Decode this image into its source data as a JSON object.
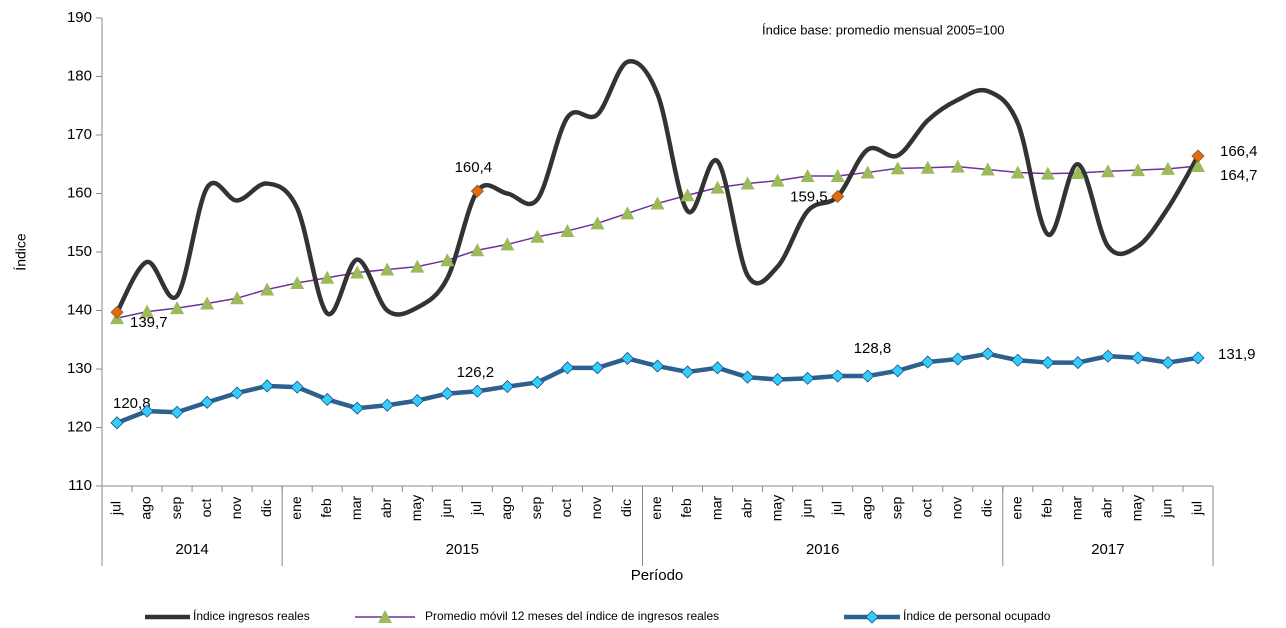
{
  "chart_data": {
    "type": "line",
    "annotation": "Índice base: promedio  mensual 2005=100",
    "y_label": "Índice",
    "x_label": "Período",
    "categories": [
      "jul",
      "ago",
      "sep",
      "oct",
      "nov",
      "dic",
      "ene",
      "feb",
      "mar",
      "abr",
      "may",
      "jun",
      "jul",
      "ago",
      "sep",
      "oct",
      "nov",
      "dic",
      "ene",
      "feb",
      "mar",
      "abr",
      "may",
      "jun",
      "jul",
      "ago",
      "sep",
      "oct",
      "nov",
      "dic",
      "ene",
      "feb",
      "mar",
      "abr",
      "may",
      "jun",
      "jul"
    ],
    "year_groups": [
      {
        "label": "2014",
        "span": 6
      },
      {
        "label": "2015",
        "span": 12
      },
      {
        "label": "2016",
        "span": 12
      },
      {
        "label": "2017",
        "span": 7
      }
    ],
    "ylim": [
      110,
      190
    ],
    "yticks": [
      110,
      120,
      130,
      140,
      150,
      160,
      170,
      180,
      190
    ],
    "series": [
      {
        "name": "Índice ingresos reales",
        "color": "#333333",
        "marker_color": "#e46c0a",
        "smooth": true,
        "values": [
          139.7,
          148.3,
          142.5,
          161,
          158.8,
          161.7,
          157.5,
          139.5,
          148.7,
          140,
          140.5,
          145.5,
          160.4,
          160,
          159,
          173,
          173.5,
          182.5,
          177,
          157,
          165.5,
          146,
          147.5,
          157,
          159.5,
          167.5,
          166.5,
          172.5,
          176,
          177.5,
          172,
          153,
          165,
          151,
          151,
          157.5,
          166.4
        ],
        "value_labels": [
          "139,7",
          null,
          null,
          null,
          null,
          null,
          null,
          null,
          null,
          null,
          null,
          null,
          "160,4",
          null,
          null,
          null,
          null,
          null,
          null,
          null,
          null,
          null,
          null,
          null,
          "159,5",
          null,
          null,
          null,
          null,
          null,
          null,
          null,
          null,
          null,
          null,
          null,
          "166,4"
        ]
      },
      {
        "name": "Promedio móvil 12 meses del índice de ingresos reales",
        "color": "#7030a0",
        "marker_color": "#9bbb59",
        "smooth": false,
        "values": [
          138.7,
          139.8,
          140.4,
          141.2,
          142.1,
          143.6,
          144.7,
          145.6,
          146.5,
          147,
          147.5,
          148.6,
          150.3,
          151.3,
          152.6,
          153.6,
          154.9,
          156.6,
          158.3,
          159.7,
          161,
          161.7,
          162.2,
          163,
          163,
          163.6,
          164.3,
          164.4,
          164.6,
          164.1,
          163.6,
          163.4,
          163.5,
          163.8,
          164,
          164.2,
          164.7
        ],
        "value_labels": [
          null,
          null,
          null,
          null,
          null,
          null,
          null,
          null,
          null,
          null,
          null,
          null,
          null,
          null,
          null,
          null,
          null,
          null,
          null,
          null,
          null,
          null,
          null,
          null,
          null,
          null,
          null,
          null,
          null,
          null,
          null,
          null,
          null,
          null,
          null,
          null,
          "164,7"
        ]
      },
      {
        "name": "Índice de personal ocupado",
        "color": "#2e5f8f",
        "marker_color": "#33ccff",
        "smooth": false,
        "values": [
          120.8,
          122.8,
          122.6,
          124.3,
          125.9,
          127.1,
          126.9,
          124.8,
          123.3,
          123.8,
          124.6,
          125.8,
          126.2,
          127,
          127.7,
          130.2,
          130.2,
          131.8,
          130.5,
          129.5,
          130.2,
          128.6,
          128.2,
          128.4,
          128.8,
          128.8,
          129.7,
          131.2,
          131.7,
          132.6,
          131.5,
          131.1,
          131.1,
          132.2,
          131.9,
          131.1,
          131.9
        ],
        "value_labels": [
          "120,8",
          null,
          null,
          null,
          null,
          null,
          null,
          null,
          null,
          null,
          null,
          null,
          "126,2",
          null,
          null,
          null,
          null,
          null,
          null,
          null,
          null,
          null,
          null,
          null,
          "128,8",
          null,
          null,
          null,
          null,
          null,
          null,
          null,
          null,
          null,
          null,
          null,
          "131,9"
        ]
      }
    ]
  }
}
